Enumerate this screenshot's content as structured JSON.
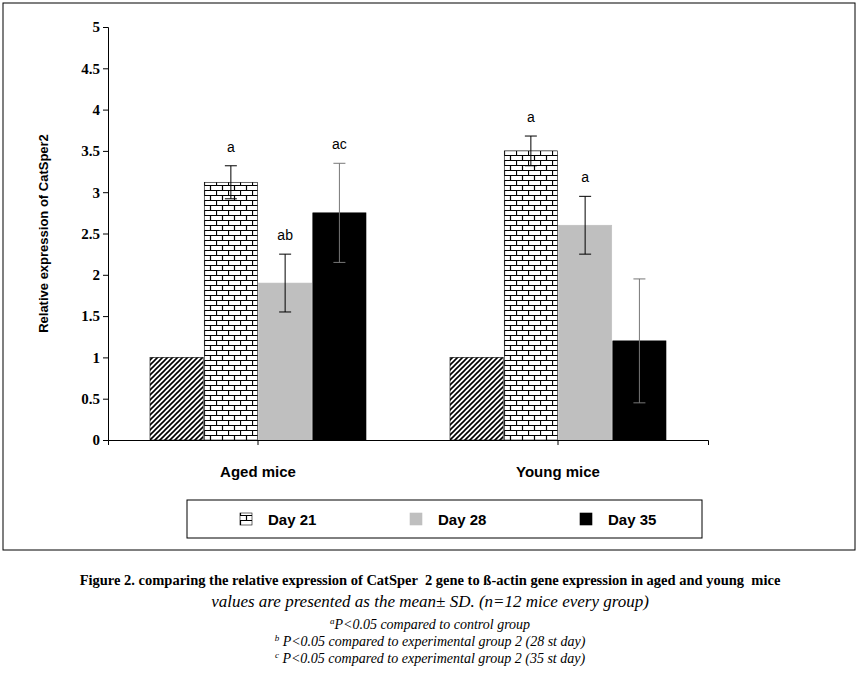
{
  "chart_data": {
    "type": "bar",
    "title": "Figure 2. comparing the relative expression of CatSper  2 gene to ß-actin gene expression in aged and young  mice",
    "subtitle": "values are presented as the mean± SD. (n=12 mice every group)",
    "notes": [
      {
        "mark": "a",
        "text": "P<0.05 compared to control group"
      },
      {
        "mark": "b",
        "text": " P<0.05 compared to experimental group 2 (28 st day)"
      },
      {
        "mark": "c",
        "text": " P<0.05 compared to experimental group 2 (35 st day)"
      }
    ],
    "y_label": "Relative expression of CatSper2",
    "categories": [
      "Aged mice",
      "Young mice"
    ],
    "series": [
      {
        "name": null,
        "color": "#000000",
        "values": [
          1,
          1
        ],
        "errors": [
          0,
          0
        ],
        "letters": [
          null,
          null
        ]
      },
      {
        "name": "Day 21",
        "color": "#000000",
        "values": [
          3.12,
          3.5
        ],
        "errors": [
          0.2,
          0.18
        ],
        "letters": [
          "a",
          "a"
        ]
      },
      {
        "name": "Day 28",
        "color": "#bfbfbf",
        "values": [
          1.9,
          2.6
        ],
        "errors": [
          0.35,
          0.35
        ],
        "letters": [
          "ab",
          "a"
        ]
      },
      {
        "name": "Day 35",
        "color": "#000000",
        "values": [
          2.75,
          1.2
        ],
        "errors": [
          0.6,
          0.75
        ],
        "letters": [
          "ac",
          null
        ]
      }
    ],
    "ylim": [
      0,
      5
    ],
    "yticks": [
      0,
      0.5,
      1,
      1.5,
      2,
      2.5,
      3,
      3.5,
      4,
      4.5,
      5
    ],
    "grid": false,
    "legend": "bottom"
  }
}
